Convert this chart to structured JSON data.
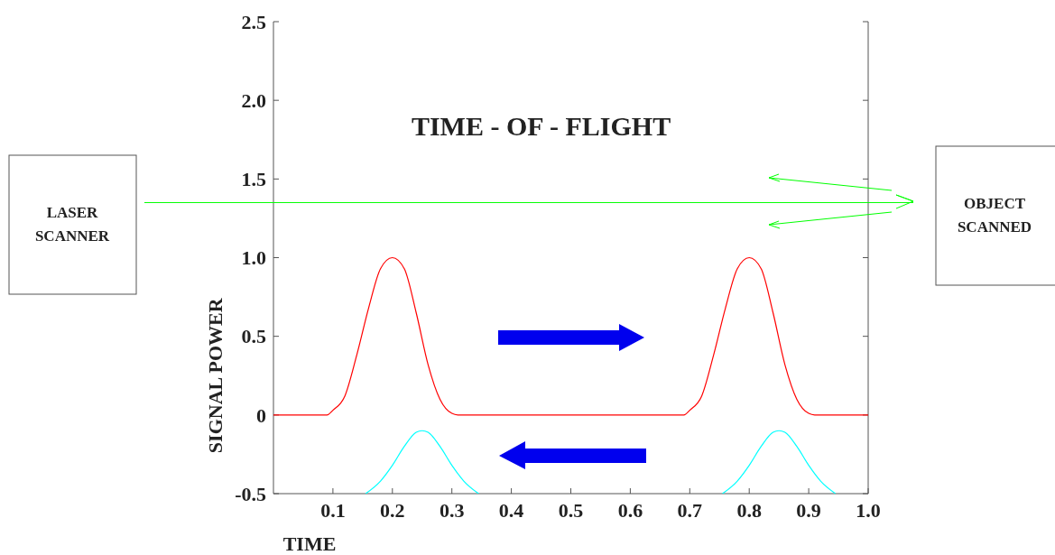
{
  "chart_data": {
    "type": "line",
    "title": "TIME - OF - FLIGHT",
    "xlabel": "TIME",
    "ylabel": "SIGNAL POWER",
    "annotations": [
      "LASER SCANNER",
      "OBJECT SCANNED"
    ],
    "xlim": [
      0,
      1.0
    ],
    "ylim": [
      -0.5,
      2.5
    ],
    "xticks": [
      0.1,
      0.2,
      0.3,
      0.4,
      0.5,
      0.6,
      0.7,
      0.8,
      0.9,
      {
        "value": 1.0,
        "label": "1.0"
      }
    ],
    "yticks": [
      -0.5,
      0,
      0.5,
      {
        "value": 1.0,
        "label": "1.0"
      },
      1.5,
      {
        "value": 2.0,
        "label": "2.0"
      },
      2.5
    ],
    "ref_lines": [
      {
        "axis": "y",
        "value": 1.35,
        "color": "#00ff00"
      }
    ],
    "series": [
      {
        "color": "#ff0000",
        "x": [
          0,
          0.09,
          0.1,
          0.12,
          0.14,
          0.16,
          0.18,
          0.2,
          0.22,
          0.24,
          0.26,
          0.28,
          0.3,
          0.31,
          0.69,
          0.7,
          0.72,
          0.74,
          0.76,
          0.78,
          0.8,
          0.82,
          0.84,
          0.86,
          0.88,
          0.9,
          0.91,
          1.0
        ],
        "values": [
          0,
          0,
          0.03,
          0.12,
          0.38,
          0.68,
          0.93,
          1.0,
          0.93,
          0.65,
          0.32,
          0.1,
          0.01,
          0,
          0,
          0.03,
          0.12,
          0.38,
          0.68,
          0.93,
          1.0,
          0.93,
          0.65,
          0.32,
          0.1,
          0.01,
          0,
          0
        ]
      },
      {
        "color": "#00ffff",
        "x": [
          0.155,
          0.18,
          0.2,
          0.22,
          0.24,
          0.25,
          0.26,
          0.28,
          0.3,
          0.32,
          0.345
        ],
        "values": [
          -0.5,
          -0.42,
          -0.32,
          -0.2,
          -0.11,
          -0.1,
          -0.11,
          -0.2,
          -0.32,
          -0.42,
          -0.5
        ]
      },
      {
        "color": "#00ffff",
        "x": [
          0.755,
          0.78,
          0.8,
          0.82,
          0.84,
          0.85,
          0.86,
          0.88,
          0.9,
          0.92,
          0.945
        ],
        "values": [
          -0.5,
          -0.42,
          -0.32,
          -0.2,
          -0.11,
          -0.1,
          -0.11,
          -0.2,
          -0.32,
          -0.42,
          -0.5
        ]
      }
    ]
  }
}
